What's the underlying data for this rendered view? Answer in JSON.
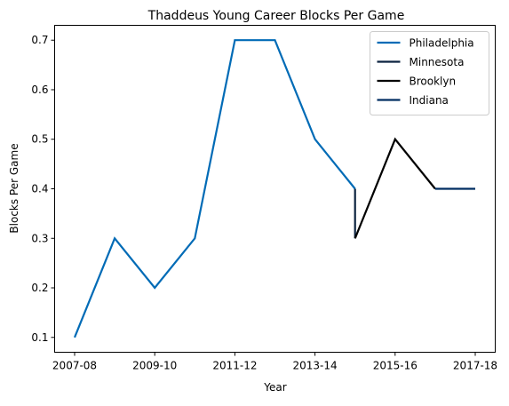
{
  "chart_data": {
    "type": "line",
    "title": "Thaddeus Young Career Blocks Per Game",
    "xlabel": "Year",
    "ylabel": "Blocks Per Game",
    "x_categories": [
      "2007-08",
      "2008-09",
      "2009-10",
      "2010-11",
      "2011-12",
      "2012-13",
      "2013-14",
      "2014-15",
      "2015-16",
      "2016-17",
      "2017-18"
    ],
    "x_tick_labels": [
      "2007-08",
      "2009-10",
      "2011-12",
      "2013-14",
      "2015-16",
      "2017-18"
    ],
    "y_ticks": [
      0.1,
      0.2,
      0.3,
      0.4,
      0.5,
      0.6,
      0.7
    ],
    "y_tick_labels": [
      "0.1",
      "0.2",
      "0.3",
      "0.4",
      "0.5",
      "0.6",
      "0.7"
    ],
    "ylim": [
      0.07,
      0.73
    ],
    "grid": false,
    "legend_position": "top-right",
    "series": [
      {
        "name": "Philadelphia",
        "color": "#006BB6",
        "points": [
          [
            "2007-08",
            0.1
          ],
          [
            "2008-09",
            0.3
          ],
          [
            "2009-10",
            0.2
          ],
          [
            "2010-11",
            0.3
          ],
          [
            "2011-12",
            0.7
          ],
          [
            "2012-13",
            0.7
          ],
          [
            "2013-14",
            0.5
          ],
          [
            "2014-15",
            0.4
          ]
        ]
      },
      {
        "name": "Minnesota",
        "color": "#0C2340",
        "points": [
          [
            "2014-15",
            0.4
          ],
          [
            "2014-15",
            0.3
          ]
        ]
      },
      {
        "name": "Brooklyn",
        "color": "#000000",
        "points": [
          [
            "2014-15",
            0.3
          ],
          [
            "2015-16",
            0.5
          ],
          [
            "2016-17",
            0.4
          ]
        ]
      },
      {
        "name": "Indiana",
        "color": "#002D62",
        "points": [
          [
            "2016-17",
            0.4
          ],
          [
            "2017-18",
            0.4
          ]
        ]
      }
    ]
  }
}
